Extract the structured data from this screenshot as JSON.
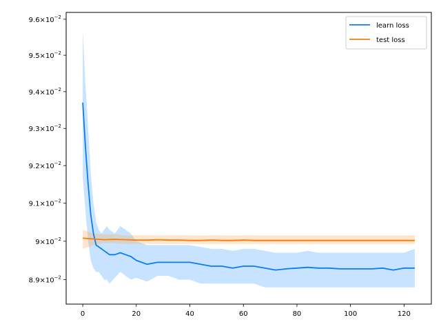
{
  "chart_data": {
    "type": "line",
    "title": "",
    "xlabel": "",
    "ylabel": "",
    "yscale": "log",
    "xlim": [
      -6.2,
      130.2
    ],
    "ylim": [
      0.08837,
      0.09619
    ],
    "x_ticks": [
      0,
      20,
      40,
      60,
      80,
      100,
      120
    ],
    "y_ticks": [
      {
        "value": 0.089,
        "base": "8.9",
        "exp": "−2"
      },
      {
        "value": 0.09,
        "base": "9",
        "exp": "−2"
      },
      {
        "value": 0.091,
        "base": "9.1",
        "exp": "−2"
      },
      {
        "value": 0.092,
        "base": "9.2",
        "exp": "−2"
      },
      {
        "value": 0.093,
        "base": "9.3",
        "exp": "−2"
      },
      {
        "value": 0.094,
        "base": "9.4",
        "exp": "−2"
      },
      {
        "value": 0.095,
        "base": "9.5",
        "exp": "−2"
      },
      {
        "value": 0.096,
        "base": "9.6",
        "exp": "−2"
      }
    ],
    "legend_position": "top-right",
    "grid": false,
    "series": [
      {
        "name": "learn loss",
        "color": "#0a7cf0",
        "band_color": "#3a9bff",
        "x": [
          0,
          1,
          2,
          3,
          4,
          5,
          6,
          7,
          8,
          9,
          10,
          12,
          14,
          16,
          18,
          20,
          24,
          28,
          32,
          36,
          40,
          44,
          48,
          52,
          56,
          60,
          64,
          68,
          72,
          76,
          80,
          84,
          88,
          92,
          96,
          100,
          104,
          108,
          112,
          116,
          120,
          124
        ],
        "y": [
          0.0937,
          0.0925,
          0.0915,
          0.0907,
          0.0902,
          0.0899,
          0.08985,
          0.0898,
          0.08975,
          0.0897,
          0.08965,
          0.08965,
          0.0897,
          0.08965,
          0.0896,
          0.0895,
          0.0894,
          0.08945,
          0.08945,
          0.08945,
          0.08945,
          0.0894,
          0.08935,
          0.08935,
          0.0893,
          0.08935,
          0.08935,
          0.0893,
          0.08925,
          0.08928,
          0.0893,
          0.08932,
          0.0893,
          0.0893,
          0.08928,
          0.08928,
          0.08928,
          0.08928,
          0.0893,
          0.08925,
          0.0893,
          0.0893
        ],
        "lower": [
          0.0917,
          0.0908,
          0.09,
          0.0895,
          0.0893,
          0.0892,
          0.0892,
          0.0891,
          0.089,
          0.089,
          0.0889,
          0.08905,
          0.0892,
          0.0891,
          0.089,
          0.08905,
          0.08895,
          0.0891,
          0.0891,
          0.089,
          0.089,
          0.0889,
          0.0889,
          0.0889,
          0.0889,
          0.0889,
          0.0889,
          0.0888,
          0.0888,
          0.0888,
          0.0888,
          0.0888,
          0.0888,
          0.0888,
          0.0888,
          0.0888,
          0.0888,
          0.0888,
          0.0888,
          0.0888,
          0.0888,
          0.0888
        ],
        "upper": [
          0.0957,
          0.0942,
          0.093,
          0.0918,
          0.091,
          0.0905,
          0.0903,
          0.0902,
          0.0903,
          0.0904,
          0.0903,
          0.0902,
          0.0904,
          0.0903,
          0.0902,
          0.09,
          0.0899,
          0.0899,
          0.0899,
          0.0899,
          0.0899,
          0.08985,
          0.0898,
          0.0898,
          0.08975,
          0.0898,
          0.0898,
          0.08975,
          0.0897,
          0.0897,
          0.0897,
          0.08975,
          0.0897,
          0.0897,
          0.0897,
          0.0897,
          0.0897,
          0.0897,
          0.0897,
          0.0897,
          0.0897,
          0.0898
        ]
      },
      {
        "name": "test loss",
        "color": "#f07f0e",
        "band_color": "#ffa040",
        "x": [
          0,
          4,
          8,
          12,
          16,
          20,
          24,
          28,
          32,
          36,
          40,
          44,
          48,
          52,
          56,
          60,
          64,
          68,
          72,
          76,
          80,
          84,
          88,
          92,
          96,
          100,
          104,
          108,
          112,
          116,
          120,
          124
        ],
        "y": [
          0.09008,
          0.09006,
          0.09004,
          0.09005,
          0.09004,
          0.09003,
          0.09003,
          0.09004,
          0.09003,
          0.09003,
          0.09002,
          0.09002,
          0.09003,
          0.09002,
          0.09002,
          0.09003,
          0.09002,
          0.09002,
          0.09002,
          0.09002,
          0.09002,
          0.09002,
          0.09002,
          0.09002,
          0.09002,
          0.09002,
          0.09002,
          0.09002,
          0.09002,
          0.09002,
          0.09002,
          0.09002
        ],
        "lower": [
          0.0898,
          0.0899,
          0.08995,
          0.08995,
          0.08993,
          0.08993,
          0.08993,
          0.08993,
          0.08993,
          0.08993,
          0.08993,
          0.08993,
          0.08993,
          0.08993,
          0.08993,
          0.08993,
          0.08993,
          0.08993,
          0.08993,
          0.08993,
          0.08993,
          0.08993,
          0.08993,
          0.08993,
          0.08993,
          0.08993,
          0.08993,
          0.08993,
          0.08993,
          0.08993,
          0.08993,
          0.08993
        ],
        "upper": [
          0.0903,
          0.0902,
          0.09018,
          0.09018,
          0.09015,
          0.09015,
          0.09015,
          0.09015,
          0.09015,
          0.09015,
          0.09015,
          0.09015,
          0.09015,
          0.09015,
          0.09015,
          0.09015,
          0.09015,
          0.09015,
          0.09015,
          0.09015,
          0.09015,
          0.09015,
          0.09015,
          0.09015,
          0.09015,
          0.09015,
          0.09015,
          0.09015,
          0.09015,
          0.09015,
          0.09015,
          0.09015
        ]
      }
    ]
  }
}
